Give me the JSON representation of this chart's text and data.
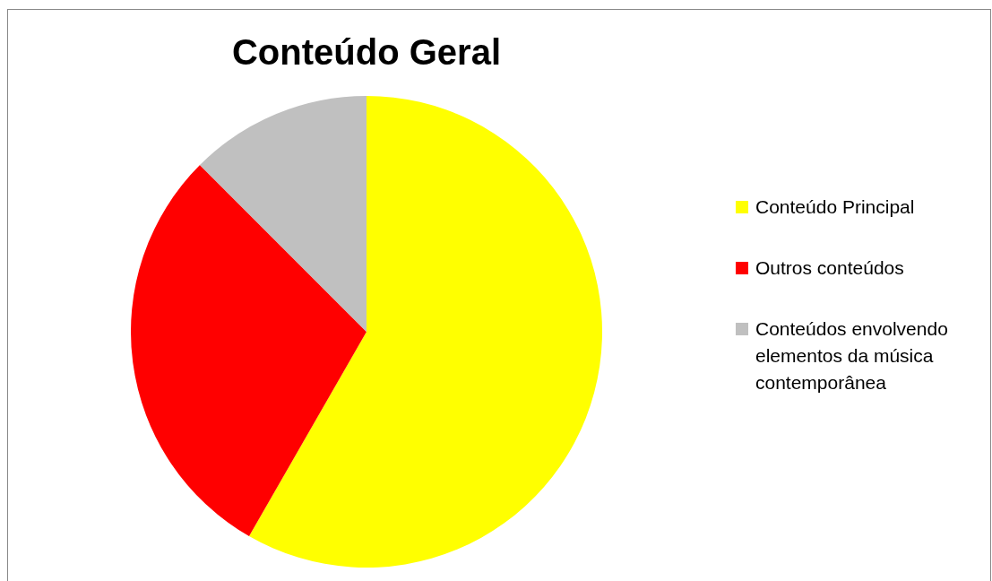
{
  "chart_data": {
    "type": "pie",
    "title": "Conteúdo Geral",
    "categories": [
      "Conteúdo Principal",
      "Outros conteúdos",
      "Conteúdos envolvendo elementos da música contemporânea"
    ],
    "values": [
      58.3,
      29.2,
      12.5
    ],
    "colors": [
      "#ffff00",
      "#ff0000",
      "#c0c0c0"
    ],
    "legend": "right"
  }
}
